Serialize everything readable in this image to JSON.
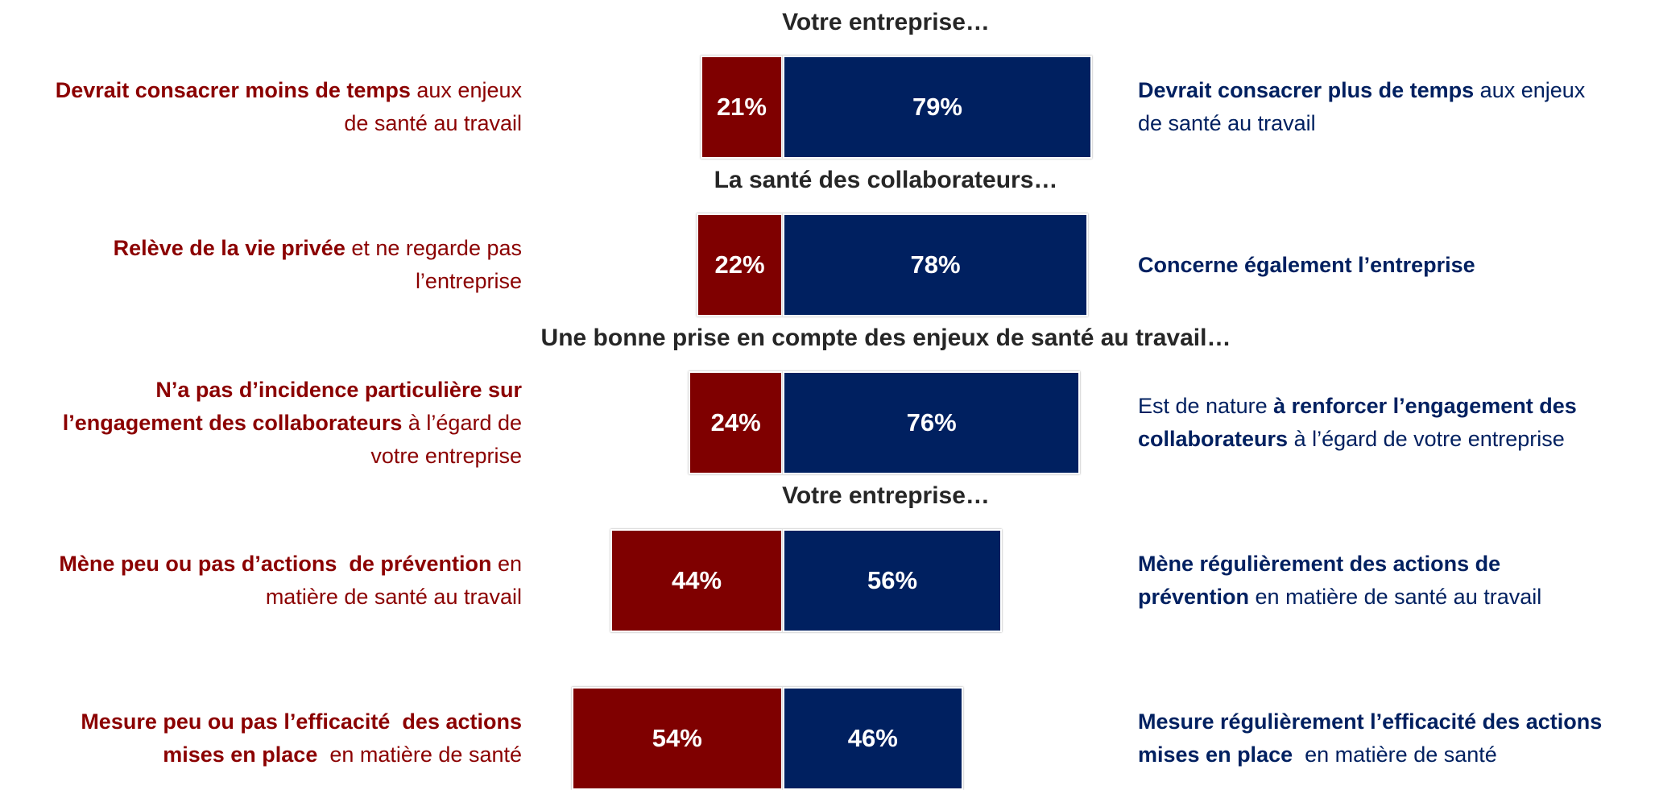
{
  "chart_data": {
    "type": "diverging-bar",
    "left_color": "#7f0000",
    "right_color": "#002060",
    "rows": [
      {
        "header": "Votre entreprise…",
        "left_label": [
          [
            {
              "text": "Devrait consacrer moins de temps",
              "bold": true
            },
            {
              "text": " aux enjeux"
            }
          ],
          [
            {
              "text": "de santé au travail"
            }
          ]
        ],
        "right_label": [
          [
            {
              "text": "Devrait consacrer plus de temps",
              "bold": true
            },
            {
              "text": " aux enjeux"
            }
          ],
          [
            {
              "text": "de santé au travail"
            }
          ]
        ],
        "values": [
          21,
          79
        ],
        "value_labels": [
          "21%",
          "79%"
        ]
      },
      {
        "header": "La santé des collaborateurs…",
        "left_label": [
          [
            {
              "text": "Relève de la vie privée",
              "bold": true
            },
            {
              "text": " et ne regarde pas"
            }
          ],
          [
            {
              "text": "l’entreprise"
            }
          ]
        ],
        "right_label": [
          [
            {
              "text": "Concerne également l’entreprise",
              "bold": true
            }
          ]
        ],
        "values": [
          22,
          78
        ],
        "value_labels": [
          "22%",
          "78%"
        ]
      },
      {
        "header": "Une bonne prise en compte des enjeux de santé au travail…",
        "left_label": [
          [
            {
              "text": "N’a pas d’incidence particulière sur",
              "bold": true
            }
          ],
          [
            {
              "text": "l’engagement des collaborateurs",
              "bold": true
            },
            {
              "text": " à l’égard de"
            }
          ],
          [
            {
              "text": "votre entreprise"
            }
          ]
        ],
        "right_label": [
          [
            {
              "text": "Est de nature "
            },
            {
              "text": "à renforcer l’engagement des",
              "bold": true
            }
          ],
          [
            {
              "text": "collaborateurs",
              "bold": true
            },
            {
              "text": " à l’égard de votre entreprise"
            }
          ]
        ],
        "values": [
          24,
          76
        ],
        "value_labels": [
          "24%",
          "76%"
        ]
      },
      {
        "header": "Votre entreprise…",
        "left_label": [
          [
            {
              "text": "Mène peu ou pas d’actions  de prévention",
              "bold": true
            },
            {
              "text": " en"
            }
          ],
          [
            {
              "text": "matière de santé au travail"
            }
          ]
        ],
        "right_label": [
          [
            {
              "text": "Mène régulièrement des actions de",
              "bold": true
            }
          ],
          [
            {
              "text": "prévention",
              "bold": true
            },
            {
              "text": " en matière de santé au travail"
            }
          ]
        ],
        "values": [
          44,
          56
        ],
        "value_labels": [
          "44%",
          "56%"
        ]
      },
      {
        "left_label": [
          [
            {
              "text": "Mesure peu ou pas l’efficacité  des actions",
              "bold": true
            }
          ],
          [
            {
              "text": "mises en place",
              "bold": true
            },
            {
              "text": "  en matière de santé"
            }
          ]
        ],
        "right_label": [
          [
            {
              "text": "Mesure régulièrement l’efficacité des actions",
              "bold": true
            }
          ],
          [
            {
              "text": "mises en place",
              "bold": true
            },
            {
              "text": "  en matière de santé"
            }
          ]
        ],
        "values": [
          54,
          46
        ],
        "value_labels": [
          "54%",
          "46%"
        ]
      }
    ]
  }
}
